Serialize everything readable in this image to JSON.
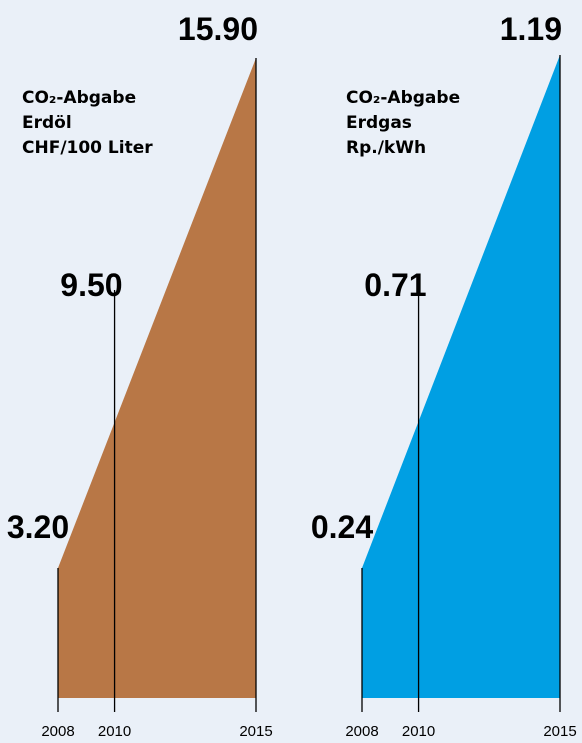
{
  "chart_data": [
    {
      "type": "area",
      "title_lines": [
        "CO₂-Abgabe",
        "Erdöl",
        "CHF/100 Liter"
      ],
      "x": [
        "2008",
        "2010",
        "2015"
      ],
      "values": [
        3.2,
        9.5,
        15.9
      ],
      "value_labels": [
        "3.20",
        "9.50",
        "15.90"
      ],
      "color": "#b87746"
    },
    {
      "type": "area",
      "title_lines": [
        "CO₂-Abgabe",
        "Erdgas",
        "Rp./kWh"
      ],
      "x": [
        "2008",
        "2010",
        "2015"
      ],
      "values": [
        0.24,
        0.71,
        1.19
      ],
      "value_labels": [
        "0.24",
        "0.71",
        "1.19"
      ],
      "color": "#009fe3"
    }
  ],
  "colors": {
    "background": "#eaf0f8",
    "axis": "#000000"
  }
}
